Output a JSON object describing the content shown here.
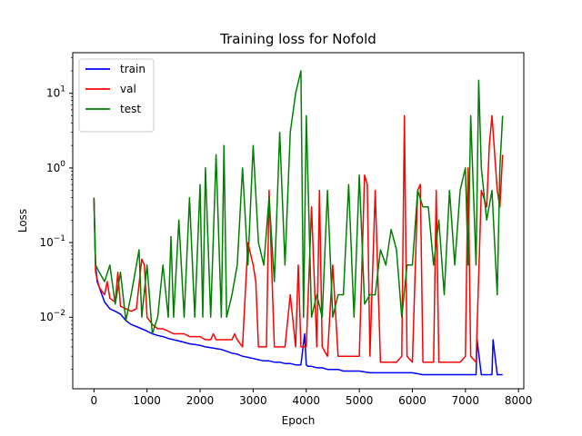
{
  "chart_data": {
    "type": "line",
    "title": "Training loss for Nofold",
    "xlabel": "Epoch",
    "ylabel": "Loss",
    "yscale": "log",
    "xlim": [
      -400,
      8100
    ],
    "ylim": [
      0.0011,
      35
    ],
    "x_ticks": [
      0,
      1000,
      2000,
      3000,
      4000,
      5000,
      6000,
      7000,
      8000
    ],
    "y_ticks": [
      {
        "value": 0.01,
        "base": "10",
        "exp": "−2"
      },
      {
        "value": 0.1,
        "base": "10",
        "exp": "−1"
      },
      {
        "value": 1,
        "base": "10",
        "exp": "0"
      },
      {
        "value": 10,
        "base": "10",
        "exp": "1"
      }
    ],
    "grid": false,
    "legend_position": "top-left",
    "series": [
      {
        "name": "train",
        "color": "#0000ff",
        "x": [
          0,
          30,
          60,
          100,
          150,
          200,
          300,
          400,
          500,
          600,
          700,
          800,
          900,
          1000,
          1100,
          1200,
          1300,
          1400,
          1500,
          1600,
          1700,
          1800,
          1900,
          2000,
          2100,
          2200,
          2300,
          2400,
          2500,
          2600,
          2700,
          2800,
          2900,
          3000,
          3100,
          3200,
          3300,
          3400,
          3500,
          3600,
          3700,
          3800,
          3900,
          3970,
          4000,
          4030,
          4100,
          4200,
          4300,
          4400,
          4500,
          4600,
          4700,
          4800,
          4900,
          5000,
          5200,
          5400,
          5600,
          5800,
          6000,
          6200,
          6400,
          6600,
          6800,
          7000,
          7100,
          7200,
          7220,
          7300,
          7400,
          7500,
          7520,
          7600,
          7700
        ],
        "y": [
          0.4,
          0.05,
          0.03,
          0.025,
          0.02,
          0.016,
          0.013,
          0.012,
          0.011,
          0.009,
          0.008,
          0.0075,
          0.007,
          0.0065,
          0.006,
          0.0057,
          0.0055,
          0.0052,
          0.005,
          0.0048,
          0.0046,
          0.0044,
          0.0043,
          0.0042,
          0.004,
          0.0039,
          0.0038,
          0.0037,
          0.0035,
          0.0033,
          0.0032,
          0.003,
          0.0029,
          0.0028,
          0.0027,
          0.0026,
          0.0026,
          0.0025,
          0.0025,
          0.0024,
          0.0024,
          0.0023,
          0.0023,
          0.006,
          0.0023,
          0.0022,
          0.0022,
          0.0021,
          0.0021,
          0.002,
          0.002,
          0.002,
          0.0019,
          0.0019,
          0.0019,
          0.0019,
          0.0018,
          0.0018,
          0.0018,
          0.0018,
          0.0018,
          0.0017,
          0.0017,
          0.0017,
          0.0017,
          0.0017,
          0.0017,
          0.0017,
          0.005,
          0.0017,
          0.0017,
          0.0017,
          0.005,
          0.0017,
          0.0017
        ]
      },
      {
        "name": "val",
        "color": "#ff0000",
        "x": [
          0,
          30,
          100,
          200,
          250,
          300,
          400,
          450,
          500,
          600,
          700,
          800,
          900,
          950,
          1000,
          1100,
          1200,
          1300,
          1400,
          1500,
          1600,
          1700,
          1800,
          1900,
          2000,
          2100,
          2200,
          2250,
          2300,
          2400,
          2500,
          2600,
          2650,
          2700,
          2800,
          2900,
          3000,
          3050,
          3100,
          3200,
          3250,
          3300,
          3400,
          3500,
          3600,
          3700,
          3800,
          3850,
          3900,
          4000,
          4100,
          4200,
          4250,
          4300,
          4400,
          4500,
          4600,
          4700,
          4800,
          4900,
          5000,
          5100,
          5150,
          5200,
          5300,
          5400,
          5500,
          5600,
          5700,
          5800,
          5850,
          5900,
          6000,
          6100,
          6150,
          6200,
          6300,
          6400,
          6450,
          6500,
          6600,
          6700,
          6800,
          6900,
          7000,
          7050,
          7100,
          7200,
          7300,
          7400,
          7450,
          7500,
          7600,
          7650,
          7700
        ],
        "y": [
          0.4,
          0.04,
          0.025,
          0.02,
          0.03,
          0.018,
          0.016,
          0.04,
          0.014,
          0.013,
          0.012,
          0.013,
          0.06,
          0.05,
          0.01,
          0.008,
          0.007,
          0.007,
          0.0065,
          0.006,
          0.006,
          0.006,
          0.0055,
          0.0055,
          0.0055,
          0.005,
          0.005,
          0.006,
          0.005,
          0.005,
          0.005,
          0.005,
          0.006,
          0.005,
          0.004,
          0.1,
          0.05,
          0.03,
          0.004,
          0.004,
          0.004,
          0.5,
          0.004,
          0.004,
          0.004,
          0.02,
          0.004,
          0.05,
          0.004,
          0.004,
          0.3,
          0.004,
          0.5,
          0.004,
          0.003,
          0.05,
          0.003,
          0.003,
          0.003,
          0.003,
          0.003,
          0.8,
          0.6,
          0.003,
          0.5,
          0.0025,
          0.0025,
          0.0025,
          0.0025,
          0.003,
          5,
          0.003,
          0.0025,
          0.5,
          0.6,
          0.0025,
          0.0025,
          0.0025,
          0.5,
          0.0025,
          0.0025,
          0.0025,
          0.0025,
          0.0025,
          0.003,
          1,
          0.003,
          0.0025,
          0.5,
          0.3,
          2,
          5,
          0.5,
          0.3,
          1.5
        ]
      },
      {
        "name": "test",
        "color": "#008000",
        "x": [
          0,
          30,
          100,
          200,
          300,
          400,
          500,
          600,
          700,
          800,
          850,
          900,
          1000,
          1100,
          1200,
          1300,
          1400,
          1450,
          1500,
          1600,
          1700,
          1800,
          1900,
          2000,
          2050,
          2100,
          2200,
          2300,
          2400,
          2450,
          2500,
          2600,
          2700,
          2800,
          2900,
          3000,
          3100,
          3200,
          3300,
          3400,
          3500,
          3600,
          3700,
          3800,
          3900,
          3950,
          4000,
          4100,
          4200,
          4300,
          4400,
          4500,
          4600,
          4700,
          4800,
          4900,
          5000,
          5100,
          5200,
          5300,
          5400,
          5500,
          5600,
          5700,
          5800,
          5900,
          6000,
          6100,
          6200,
          6300,
          6400,
          6500,
          6600,
          6700,
          6800,
          6900,
          7000,
          7050,
          7100,
          7200,
          7250,
          7300,
          7400,
          7500,
          7600,
          7650,
          7700
        ],
        "y": [
          0.4,
          0.05,
          0.04,
          0.03,
          0.05,
          0.015,
          0.04,
          0.009,
          0.02,
          0.05,
          0.08,
          0.01,
          0.05,
          0.006,
          0.01,
          0.05,
          0.01,
          0.12,
          0.01,
          0.2,
          0.01,
          0.4,
          0.01,
          0.6,
          0.01,
          1,
          0.01,
          1.5,
          0.01,
          2,
          0.01,
          0.02,
          0.05,
          1,
          0.05,
          2,
          0.1,
          0.05,
          0.4,
          0.03,
          3,
          0.05,
          3,
          10,
          20,
          0.01,
          5,
          0.01,
          0.02,
          0.01,
          0.5,
          0.01,
          0.02,
          0.02,
          0.6,
          0.01,
          0.8,
          0.015,
          0.02,
          0.02,
          0.08,
          0.05,
          0.15,
          0.08,
          0.01,
          0.05,
          0.05,
          0.5,
          0.3,
          0.3,
          0.05,
          0.2,
          0.02,
          0.5,
          0.05,
          0.5,
          1,
          0.05,
          5,
          0.05,
          15,
          1,
          0.2,
          0.5,
          0.02,
          1,
          5
        ]
      }
    ]
  }
}
